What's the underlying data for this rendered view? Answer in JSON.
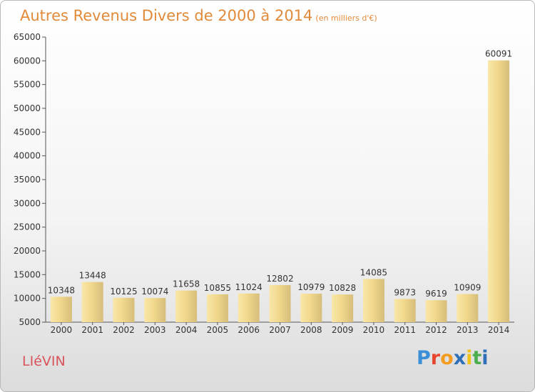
{
  "header": {
    "title": "Autres Revenus Divers de 2000 à 2014",
    "unit": "(en milliers d'€)"
  },
  "footer": {
    "city": "LIéVIN",
    "brand": "Proxiti"
  },
  "colors": {
    "title": "#e08a3a",
    "city": "#d8545a",
    "bar_light": "#f7e09a",
    "bar_dark": "#c9ad6a"
  },
  "chart_data": {
    "type": "bar",
    "categories": [
      "2000",
      "2001",
      "2002",
      "2003",
      "2004",
      "2005",
      "2006",
      "2007",
      "2008",
      "2009",
      "2010",
      "2011",
      "2012",
      "2013",
      "2014"
    ],
    "values": [
      10348,
      13448,
      10125,
      10074,
      11658,
      10855,
      11024,
      12802,
      10979,
      10828,
      14085,
      9873,
      9619,
      10909,
      60091
    ],
    "ylim": [
      5000,
      65000
    ],
    "yticks": [
      5000,
      10000,
      15000,
      20000,
      25000,
      30000,
      35000,
      40000,
      45000,
      50000,
      55000,
      60000,
      65000
    ],
    "grid": false,
    "legend": "none"
  }
}
